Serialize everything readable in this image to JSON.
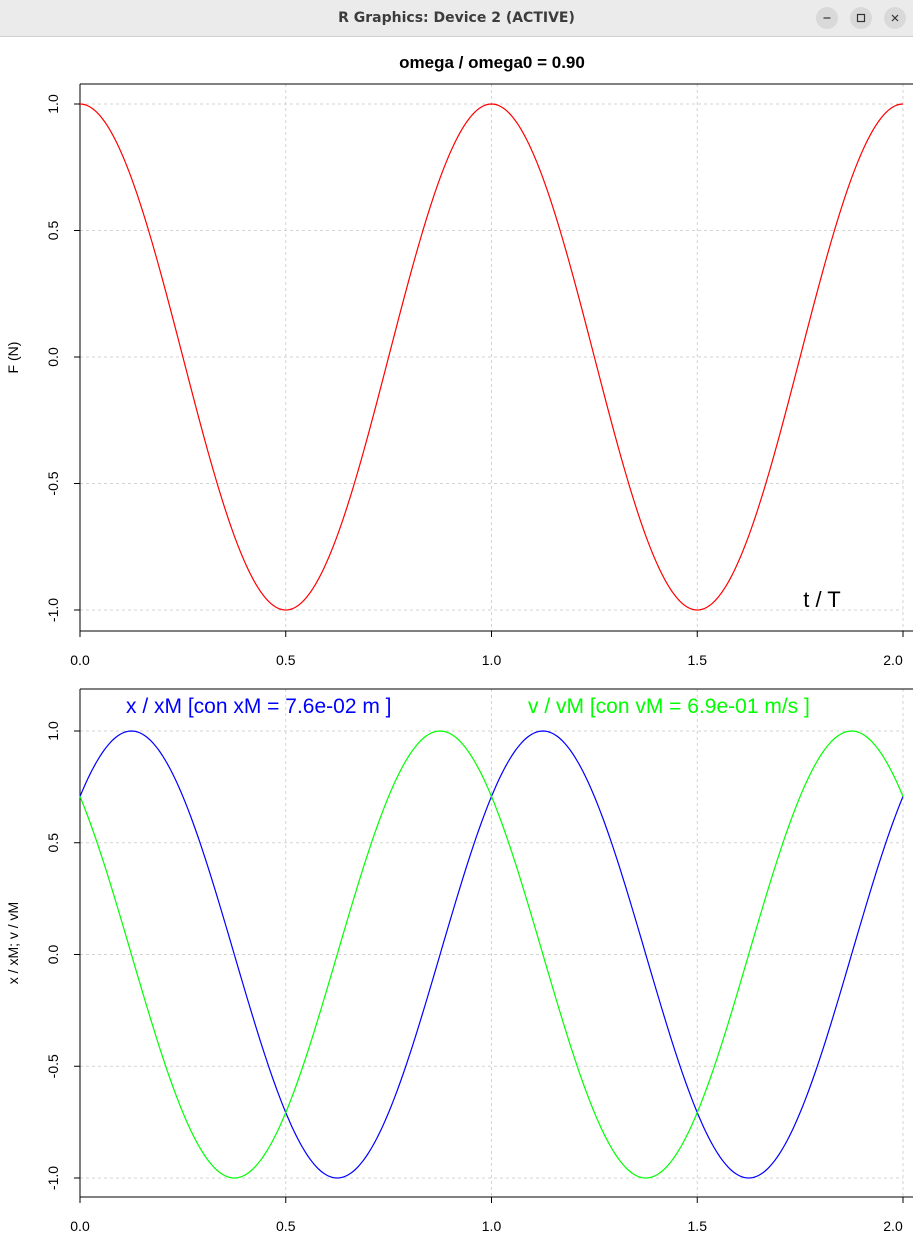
{
  "window": {
    "title": "R Graphics: Device 2 (ACTIVE)",
    "buttons": {
      "minimize": "minimize-icon",
      "maximize": "maximize-icon",
      "close": "close-icon"
    }
  },
  "chart_data": [
    {
      "type": "line",
      "title": "omega / omega0  =  0.90",
      "xlabel": "",
      "ylabel": "F (N)",
      "xlim": [
        0,
        2
      ],
      "ylim": [
        -1,
        1
      ],
      "xticks": [
        "0.0",
        "0.5",
        "1.0",
        "1.5",
        "2.0"
      ],
      "yticks": [
        "-1.0",
        "-0.5",
        "0.0",
        "0.5",
        "1.0"
      ],
      "grid": true,
      "annotation": "t / T",
      "series": [
        {
          "color": "#ff0000",
          "function": "cos(2*pi*t)",
          "samples": 100
        }
      ]
    },
    {
      "type": "line",
      "title": "",
      "xlabel": "",
      "ylabel": "x / xM;  v / vM",
      "xlim": [
        0,
        2
      ],
      "ylim": [
        -1,
        1
      ],
      "xticks": [
        "0.0",
        "0.5",
        "1.0",
        "1.5",
        "2.0"
      ],
      "yticks": [
        "-1.0",
        "-0.5",
        "0.0",
        "0.5",
        "1.0"
      ],
      "grid": true,
      "legend": [
        {
          "text": "x / xM  [con  xM = 7.6e-02 m ]",
          "color": "#0000ff"
        },
        {
          "text": "v / vM  [con  vM = 6.9e-01 m/s ]",
          "color": "#00ff00"
        }
      ],
      "series": [
        {
          "color": "#0000ff",
          "function": "sin(2*pi*t + pi/4)",
          "samples": 100
        },
        {
          "color": "#00ff00",
          "function": "cos(2*pi*t + pi/4)",
          "samples": 100
        }
      ]
    }
  ]
}
